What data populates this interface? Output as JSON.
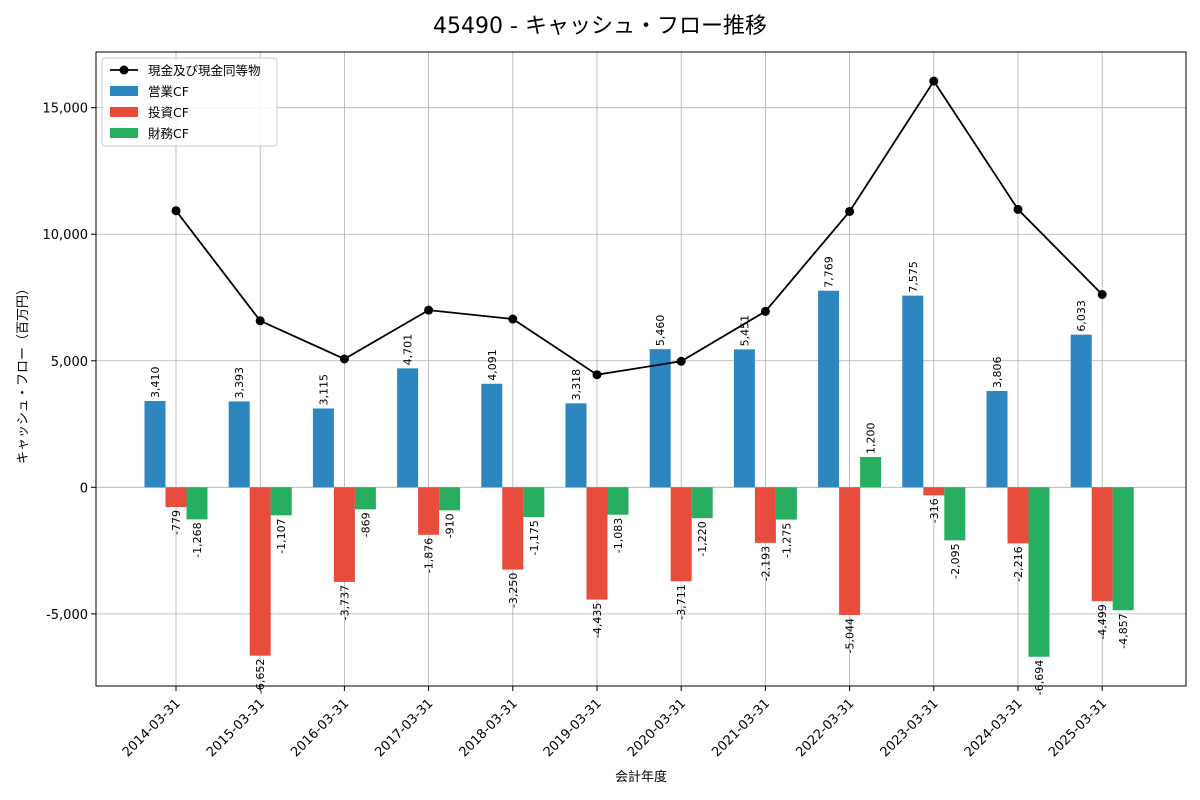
{
  "chart_data": {
    "type": "bar",
    "title": "45490 - キャッシュ・フロー推移",
    "xlabel": "会計年度",
    "ylabel": "キャッシュ・フロー（百万円）",
    "categories": [
      "2014-03-31",
      "2015-03-31",
      "2016-03-31",
      "2017-03-31",
      "2018-03-31",
      "2019-03-31",
      "2020-03-31",
      "2021-03-31",
      "2022-03-31",
      "2023-03-31",
      "2024-03-31",
      "2025-03-31"
    ],
    "series": [
      {
        "name": "営業CF",
        "type": "bar",
        "color": "#2e86c1",
        "values": [
          3410,
          3393,
          3115,
          4701,
          4091,
          3318,
          5460,
          5451,
          7769,
          7575,
          3806,
          6033
        ],
        "labels": [
          "3,410",
          "3,393",
          "3,115",
          "4,701",
          "4,091",
          "3,318",
          "5,460",
          "5,451",
          "7,769",
          "7,575",
          "3,806",
          "6,033"
        ]
      },
      {
        "name": "投資CF",
        "type": "bar",
        "color": "#e74c3c",
        "values": [
          -779,
          -6652,
          -3737,
          -1876,
          -3250,
          -4435,
          -3711,
          -2193,
          -5044,
          -316,
          -2216,
          -4499
        ],
        "labels": [
          "-779",
          "-6,652",
          "-3,737",
          "-1,876",
          "-3,250",
          "-4,435",
          "-3,711",
          "-2,193",
          "-5,044",
          "-316",
          "-2,216",
          "-4,499"
        ]
      },
      {
        "name": "財務CF",
        "type": "bar",
        "color": "#27ae60",
        "values": [
          -1268,
          -1107,
          -869,
          -910,
          -1175,
          -1083,
          -1220,
          -1275,
          1200,
          -2095,
          -6694,
          -4857
        ],
        "labels": [
          "-1,268",
          "-1,107",
          "-869",
          "-910",
          "-1,175",
          "-1,083",
          "-1,220",
          "-1,275",
          "1,200",
          "-2,095",
          "-6,694",
          "-4,857"
        ]
      },
      {
        "name": "現金及び現金同等物",
        "type": "line",
        "color": "#000000",
        "values": [
          10930,
          6580,
          5070,
          7000,
          6650,
          4450,
          4980,
          6950,
          10900,
          16050,
          10980,
          7620
        ]
      }
    ],
    "ylim": [
      -7850,
      17200
    ],
    "yticks": [
      -5000,
      0,
      5000,
      10000,
      15000
    ],
    "ytick_labels": [
      "-5,000",
      "0",
      "5,000",
      "10,000",
      "15,000"
    ],
    "grid": true,
    "legend_position": "top-left"
  }
}
